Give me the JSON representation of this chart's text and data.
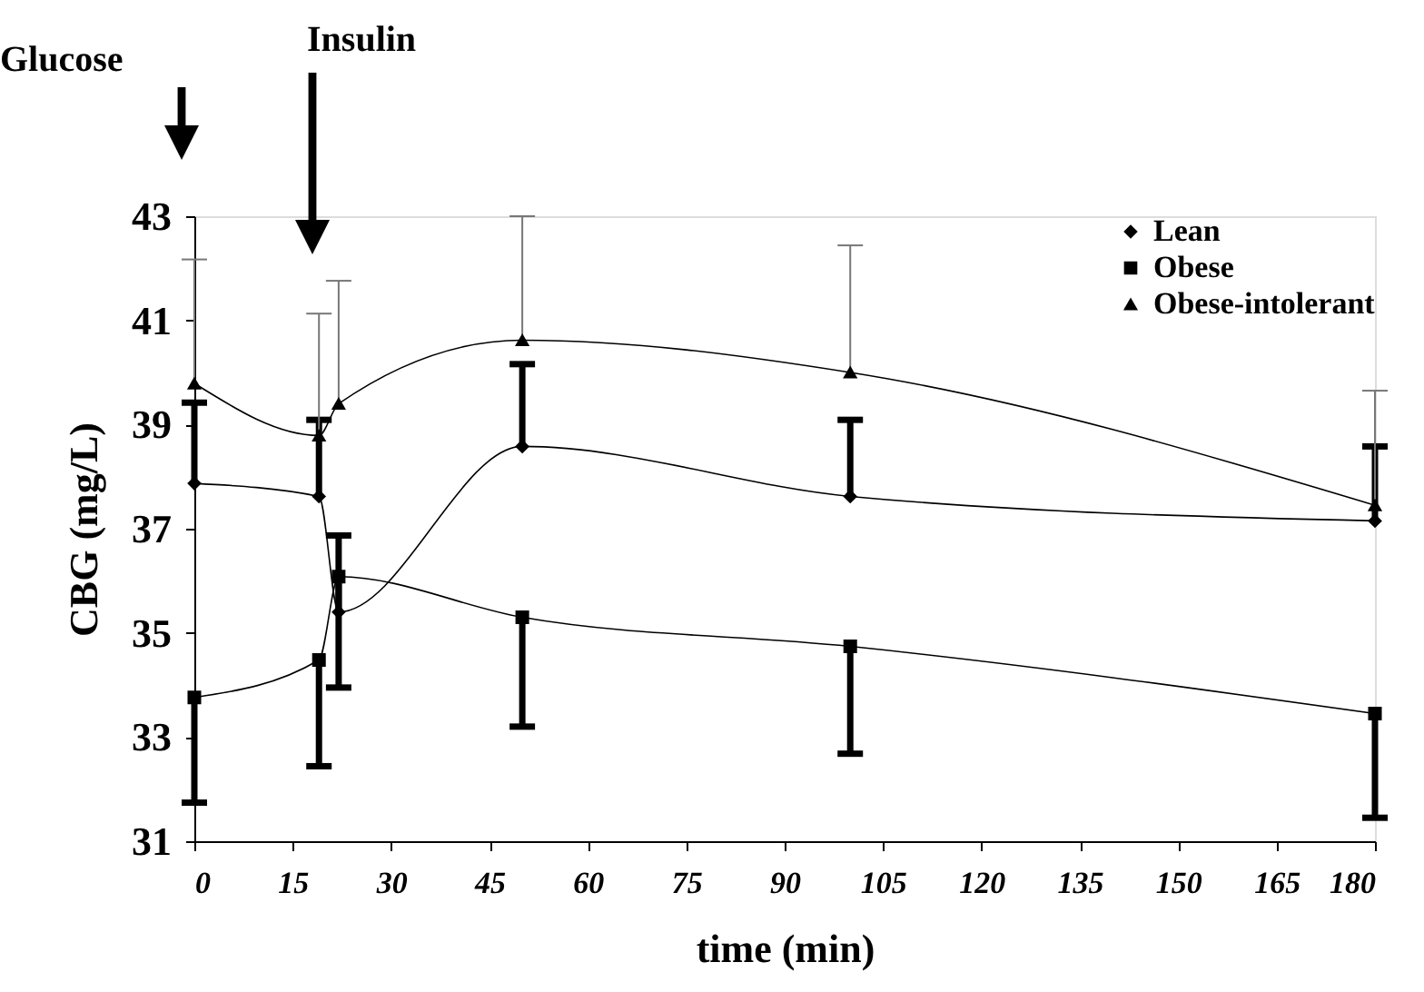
{
  "chart_data": {
    "type": "line",
    "xlabel": "time (min)",
    "ylabel": "CBG (mg/L)",
    "x": [
      0,
      19,
      22,
      50,
      100,
      180
    ],
    "series": [
      {
        "name": "Lean",
        "color": "#000000",
        "marker": "diamond",
        "values": [
          37.87,
          37.62,
          35.4,
          38.58,
          37.62,
          37.15
        ],
        "errors": [
          [
            37.87,
            39.42
          ],
          [
            37.62,
            39.09
          ],
          [
            35.4,
            36.87
          ],
          [
            38.58,
            40.16
          ],
          [
            37.62,
            39.09
          ],
          [
            37.15,
            38.58
          ]
        ]
      },
      {
        "name": "Obese",
        "color": "#000000",
        "marker": "square",
        "values": [
          33.76,
          34.48,
          36.08,
          35.3,
          34.74,
          33.45
        ],
        "errors": [
          [
            31.74,
            33.76
          ],
          [
            32.44,
            34.48
          ],
          [
            33.95,
            36.08
          ],
          [
            33.2,
            35.3
          ],
          [
            32.68,
            34.74
          ],
          [
            31.45,
            33.45
          ]
        ]
      },
      {
        "name": "Obese-intolerant",
        "color": "#000000",
        "marker": "triangle",
        "values": [
          39.79,
          38.79,
          39.4,
          40.62,
          40.0,
          37.45
        ],
        "errors": [
          [
            39.79,
            42.17
          ],
          [
            38.79,
            41.13
          ],
          [
            39.4,
            41.76
          ],
          [
            40.62,
            43.0
          ],
          [
            40.0,
            42.44
          ],
          [
            37.45,
            39.65
          ]
        ]
      }
    ],
    "xlim": [
      0,
      180
    ],
    "xticks": [
      0,
      15,
      30,
      45,
      60,
      75,
      90,
      105,
      120,
      135,
      150,
      165,
      180
    ],
    "ylim": [
      31,
      43
    ],
    "yticks": [
      31,
      33,
      35,
      37,
      39,
      41,
      43
    ],
    "annotations": [
      "Glucose",
      "Insulin"
    ],
    "grid": false,
    "legend": "top right"
  }
}
